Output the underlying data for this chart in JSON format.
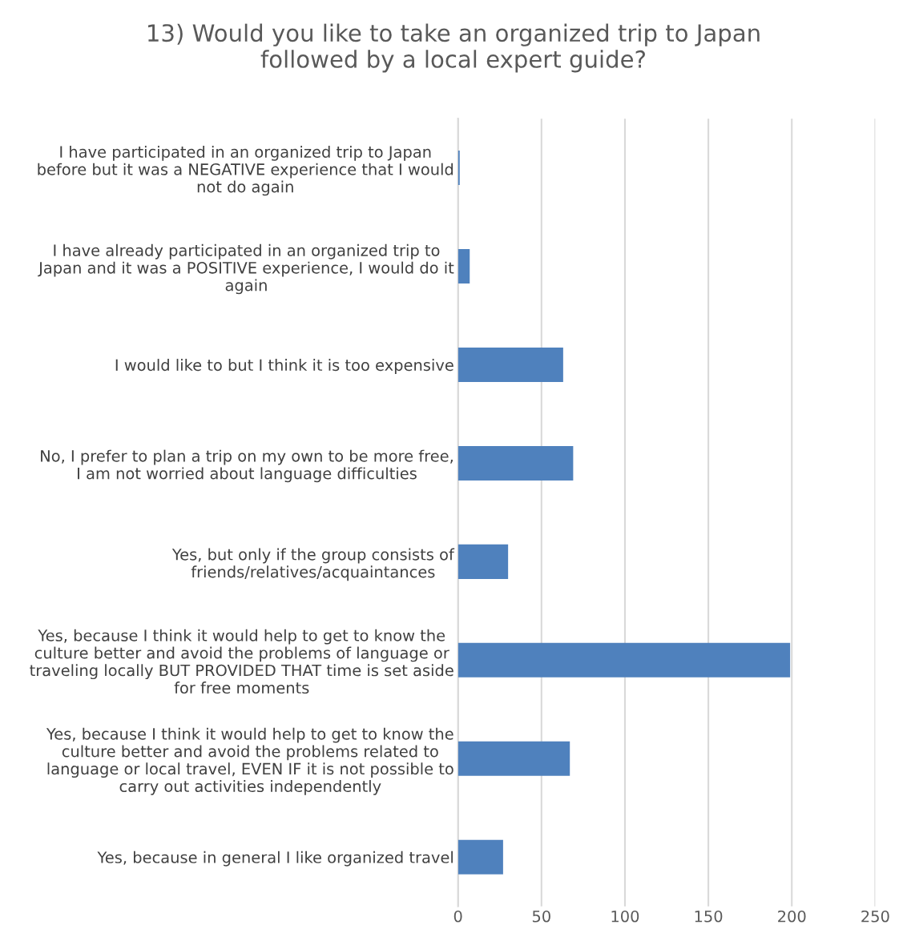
{
  "chart_data": {
    "type": "bar",
    "orientation": "horizontal",
    "title": "13) Would you like to take an organized trip to Japan\nfollowed by a local expert guide?",
    "categories": [
      "I have participated in an organized trip to Japan\nbefore but it was a NEGATIVE experience that I would\nnot do again",
      "I have already participated in an organized trip to\nJapan and it was a POSITIVE experience, I would do it\nagain",
      "I would like to but I think it is too expensive",
      "No, I prefer to plan a trip on my own to be more free,\nI am not worried about language difficulties",
      "Yes, but only if the group consists of\nfriends/relatives/acquaintances",
      "Yes, because I think it would help to get to know the\nculture better and avoid the problems of language or\ntraveling locally BUT PROVIDED THAT time is set aside\nfor free moments",
      "Yes, because I think it would help to get to know the\nculture better and avoid the problems related to\nlanguage or local travel, EVEN IF it is not possible to\ncarry out activities independently",
      "Yes, because in general I like organized travel"
    ],
    "values": [
      1,
      7,
      63,
      69,
      30,
      199,
      67,
      27
    ],
    "color": "#4f81bd",
    "xlim": [
      0,
      250
    ],
    "xticks": [
      0,
      50,
      100,
      150,
      200,
      250
    ],
    "grid": "x",
    "legend": false
  }
}
